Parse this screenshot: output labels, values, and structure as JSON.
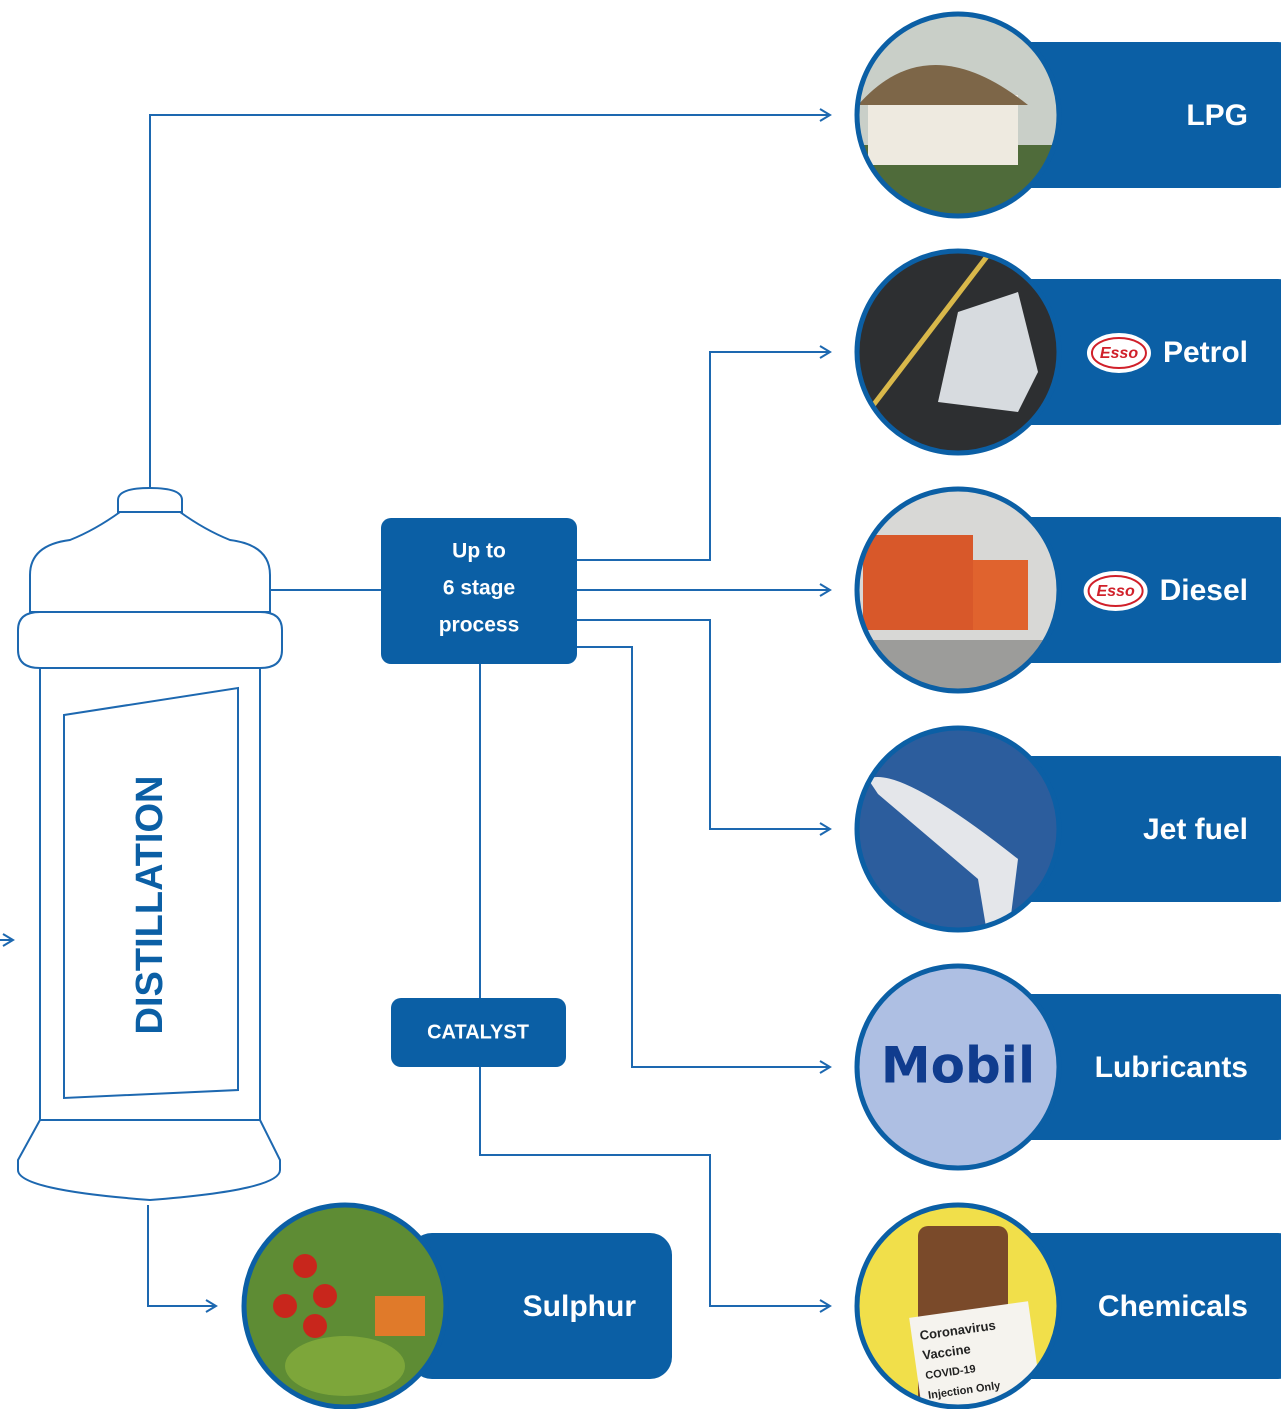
{
  "distillation": {
    "label": "DISTILLATION"
  },
  "process": {
    "lines": [
      "Up to",
      "6 stage",
      "process"
    ]
  },
  "catalyst": {
    "label": "CATALYST"
  },
  "products": [
    {
      "label": "LPG"
    },
    {
      "label": "Petrol",
      "logo": "Esso"
    },
    {
      "label": "Diesel",
      "logo": "Esso"
    },
    {
      "label": "Jet fuel"
    },
    {
      "label": "Lubricants",
      "logo": "Mobil"
    },
    {
      "label": "Chemicals",
      "photo_text": [
        "Coronavirus",
        "Vaccine",
        "COVID-19",
        "Injection Only"
      ]
    },
    {
      "label": "Sulphur"
    }
  ]
}
